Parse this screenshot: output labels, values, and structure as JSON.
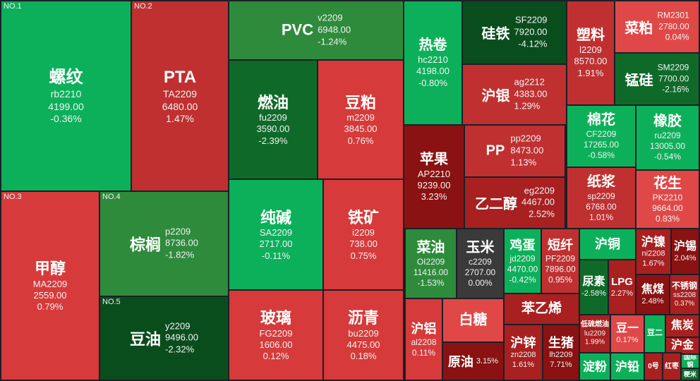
{
  "tiles": {
    "luowen": {
      "rank": "NO.1",
      "name": "螺纹",
      "code": "rb2210",
      "price": "4199.00",
      "change": "-0.36%"
    },
    "pta": {
      "rank": "NO.2",
      "name": "PTA",
      "code": "TA2209",
      "price": "6480.00",
      "change": "1.47%"
    },
    "jiachun": {
      "rank": "NO.3",
      "name": "甲醇",
      "code": "MA2209",
      "price": "2559.00",
      "change": "0.79%"
    },
    "zonglv": {
      "rank": "NO.4",
      "name": "棕榈",
      "code": "p2209",
      "price": "8736.00",
      "change": "-1.82%"
    },
    "douyou": {
      "rank": "NO.5",
      "name": "豆油",
      "code": "y2209",
      "price": "9496.00",
      "change": "-2.32%"
    },
    "pvc": {
      "name": "PVC",
      "code": "v2209",
      "price": "6948.00",
      "change": "-1.24%"
    },
    "ranyou": {
      "name": "燃油",
      "code": "fu2209",
      "price": "3590.00",
      "change": "-2.39%"
    },
    "doupo": {
      "name": "豆粕",
      "code": "m2209",
      "price": "3845.00",
      "change": "0.76%"
    },
    "chunjian": {
      "name": "纯碱",
      "code": "SA2209",
      "price": "2717.00",
      "change": "-0.11%"
    },
    "tiekuang": {
      "name": "铁矿",
      "code": "i2209",
      "price": "738.00",
      "change": "0.75%"
    },
    "boli": {
      "name": "玻璃",
      "code": "FG2209",
      "price": "1606.00",
      "change": "0.12%"
    },
    "liqing": {
      "name": "沥青",
      "code": "bu2209",
      "price": "4475.00",
      "change": "0.18%"
    },
    "rejuan": {
      "name": "热卷",
      "code": "hc2210",
      "price": "4198.00",
      "change": "-0.80%"
    },
    "guitie": {
      "name": "硅铁",
      "code": "SF2209",
      "price": "7920.00",
      "change": "-4.12%"
    },
    "huyin": {
      "name": "沪银",
      "code": "ag2212",
      "price": "4383.00",
      "change": "1.29%"
    },
    "suliao": {
      "name": "塑料",
      "code": "l2209",
      "price": "8570.00",
      "change": "1.91%"
    },
    "caipo": {
      "name": "菜粕",
      "code": "RM2301",
      "price": "2780.00",
      "change": "0.04%"
    },
    "menggui": {
      "name": "锰硅",
      "code": "SM2209",
      "price": "7700.00",
      "change": "-2.16%"
    },
    "pingguo": {
      "name": "苹果",
      "code": "AP2210",
      "price": "9239.00",
      "change": "3.23%"
    },
    "pp": {
      "name": "PP",
      "code": "pp2209",
      "price": "8473.00",
      "change": "1.13%"
    },
    "yierchun": {
      "name": "乙二醇",
      "code": "eg2209",
      "price": "4467.00",
      "change": "2.52%"
    },
    "mianhua": {
      "name": "棉花",
      "code": "CF2209",
      "price": "17265.00",
      "change": "-0.58%"
    },
    "xiangjiao": {
      "name": "橡胶",
      "code": "ru2209",
      "price": "13005.00",
      "change": "-0.54%"
    },
    "zhijiang": {
      "name": "纸浆",
      "code": "sp2209",
      "price": "6768.00",
      "change": "1.01%"
    },
    "huasheng": {
      "name": "花生",
      "code": "PK2210",
      "price": "9664.00",
      "change": "0.83%"
    },
    "caiyou": {
      "name": "菜油",
      "code": "OI2209",
      "price": "11416.00",
      "change": "-1.53%"
    },
    "yumi": {
      "name": "玉米",
      "code": "c2209",
      "price": "2707.00",
      "change": "0.00%"
    },
    "jidan": {
      "name": "鸡蛋",
      "code": "jd2209",
      "price": "4470.00",
      "change": "-0.42%"
    },
    "duanxian": {
      "name": "短纤",
      "code": "PF2209",
      "price": "7896.00",
      "change": "0.95%"
    },
    "hutong": {
      "name": "沪铜"
    },
    "niaosu": {
      "name": "尿素",
      "change": "-2.58%"
    },
    "lpg": {
      "name": "LPG",
      "change": "2.27%"
    },
    "hunie": {
      "name": "沪镍",
      "code": "ni2208",
      "change": "1.67%"
    },
    "huxi": {
      "name": "沪锡",
      "change": "2.04%"
    },
    "jiaomei": {
      "name": "焦煤",
      "change": "2.48%"
    },
    "buxiugang": {
      "name": "不锈钢",
      "code": "ss2208",
      "change": "0.37%"
    },
    "hulv": {
      "name": "沪铝",
      "code": "al2208",
      "change": "0.11%"
    },
    "baitang": {
      "name": "白糖"
    },
    "yuanyou": {
      "name": "原油",
      "change": "3.15%"
    },
    "benyixi": {
      "name": "苯乙烯"
    },
    "huxin": {
      "name": "沪锌",
      "code": "zn2208",
      "change": "1.61%"
    },
    "shengzhu": {
      "name": "生猪",
      "code": "lh2209",
      "change": "7.71%"
    },
    "dlsry": {
      "name": "低硫燃油",
      "code": "lu2209",
      "change": "1.99%"
    },
    "douyi": {
      "name": "豆一",
      "change": "0.17%"
    },
    "douer": {
      "name": "豆二"
    },
    "jiaotan": {
      "name": "焦炭"
    },
    "hujin": {
      "name": "沪金"
    },
    "dianfen": {
      "name": "淀粉"
    },
    "huqian": {
      "name": "沪铅"
    },
    "no2": {
      "name": "0号"
    },
    "hongzao": {
      "name": "红枣"
    },
    "guojitong": {
      "name": "国际铜"
    },
    "jingmi": {
      "name": "粳米"
    }
  }
}
